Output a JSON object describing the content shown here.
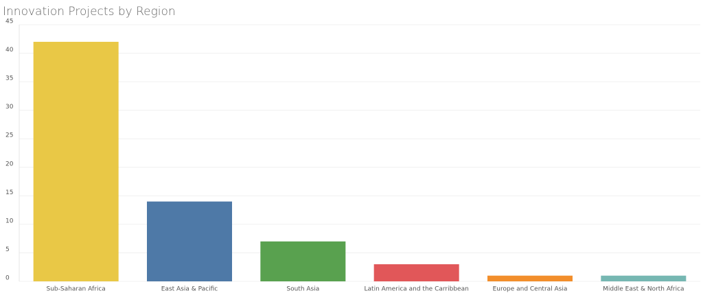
{
  "chart_data": {
    "type": "bar",
    "title": "Innovation Projects by Region",
    "categories": [
      "Sub-Saharan Africa",
      "East Asia & Pacific",
      "South Asia",
      "Latin America and the Carribbean",
      "Europe and Central Asia",
      "Middle East & North Africa"
    ],
    "values": [
      42,
      14,
      7,
      3,
      1,
      1
    ],
    "colors": [
      "#e9c846",
      "#4e79a7",
      "#59a14f",
      "#e15759",
      "#f28e2b",
      "#76b7b2"
    ],
    "ylim": [
      0,
      45
    ],
    "yticks": [
      0,
      5,
      10,
      15,
      20,
      25,
      30,
      35,
      40,
      45
    ],
    "grid": true
  }
}
